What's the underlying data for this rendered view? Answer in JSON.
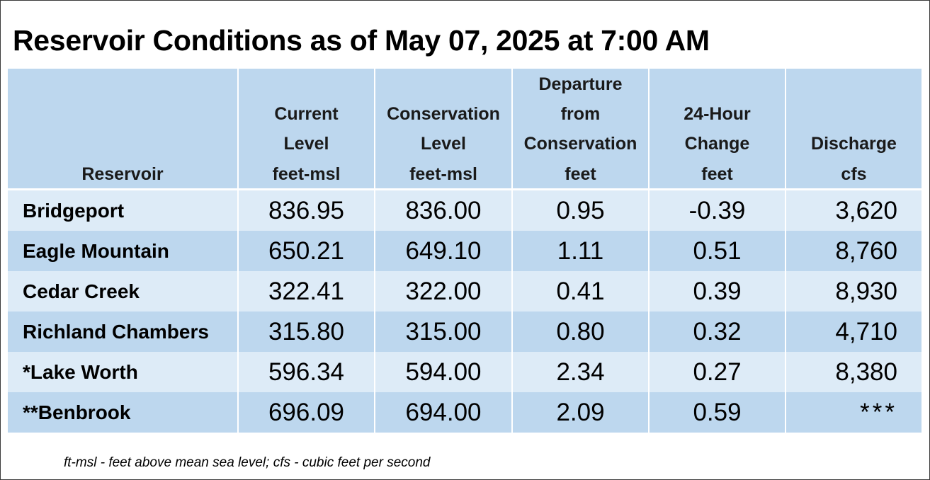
{
  "title": "Reservoir Conditions as of May 07, 2025 at 7:00 AM",
  "columns": [
    {
      "label_lines": [
        "Reservoir"
      ],
      "unit": ""
    },
    {
      "label_lines": [
        "Current",
        "Level"
      ],
      "unit": "feet-msl"
    },
    {
      "label_lines": [
        "Conservation",
        "Level"
      ],
      "unit": "feet-msl"
    },
    {
      "label_lines": [
        "Departure",
        "from",
        "Conservation"
      ],
      "unit": "feet"
    },
    {
      "label_lines": [
        "24-Hour",
        "Change"
      ],
      "unit": "feet"
    },
    {
      "label_lines": [
        "Discharge"
      ],
      "unit": "cfs"
    }
  ],
  "rows": [
    {
      "reservoir": "Bridgeport",
      "current_level": "836.95",
      "conservation_level": "836.00",
      "departure": "0.95",
      "change_24h": "-0.39",
      "discharge": "3,620"
    },
    {
      "reservoir": "Eagle Mountain",
      "current_level": "650.21",
      "conservation_level": "649.10",
      "departure": "1.11",
      "change_24h": "0.51",
      "discharge": "8,760"
    },
    {
      "reservoir": "Cedar Creek",
      "current_level": "322.41",
      "conservation_level": "322.00",
      "departure": "0.41",
      "change_24h": "0.39",
      "discharge": "8,930"
    },
    {
      "reservoir": "Richland Chambers",
      "current_level": "315.80",
      "conservation_level": "315.00",
      "departure": "0.80",
      "change_24h": "0.32",
      "discharge": "4,710"
    },
    {
      "reservoir": "*Lake Worth",
      "current_level": "596.34",
      "conservation_level": "594.00",
      "departure": "2.34",
      "change_24h": "0.27",
      "discharge": "8,380"
    },
    {
      "reservoir": "**Benbrook",
      "current_level": "696.09",
      "conservation_level": "694.00",
      "departure": "2.09",
      "change_24h": "0.59",
      "discharge": "***"
    }
  ],
  "footnote": "ft-msl - feet above mean sea level; cfs - cubic feet per second",
  "colors": {
    "header_bg": "#bdd7ee",
    "row_light": "#ddebf7",
    "row_dark": "#bdd7ee"
  }
}
